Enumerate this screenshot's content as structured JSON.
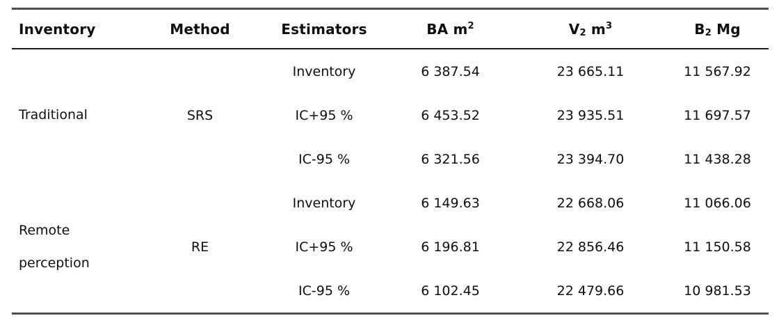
{
  "colors": {
    "background": "#ffffff",
    "text": "#0f0f0f",
    "rule_outer": "#4f4f4f",
    "rule_header": "#1c1c1c"
  },
  "table": {
    "headers": [
      {
        "name": "inventory",
        "parts": [
          {
            "text": "Inventory"
          }
        ]
      },
      {
        "name": "method",
        "parts": [
          {
            "text": "Method"
          }
        ]
      },
      {
        "name": "estimators",
        "parts": [
          {
            "text": "Estimators"
          }
        ]
      },
      {
        "name": "ba-m2",
        "parts": [
          {
            "text": "BA m"
          },
          {
            "text": "2",
            "style": "sup"
          }
        ]
      },
      {
        "name": "v2-m3",
        "parts": [
          {
            "text": "V"
          },
          {
            "text": "2",
            "style": "sub"
          },
          {
            "text": " m"
          },
          {
            "text": "3",
            "style": "sup"
          }
        ]
      },
      {
        "name": "b2-mg",
        "parts": [
          {
            "text": "B"
          },
          {
            "text": "2",
            "style": "sub"
          },
          {
            "text": " Mg"
          }
        ]
      }
    ],
    "groups": [
      {
        "inventory": "Traditional",
        "method": "SRS",
        "rows": [
          {
            "estimator": "Inventory",
            "ba_m2": "6 387.54",
            "v2_m3": "23 665.11",
            "b2_mg": "11 567.92"
          },
          {
            "estimator": "IC+95 %",
            "ba_m2": "6 453.52",
            "v2_m3": "23 935.51",
            "b2_mg": "11 697.57"
          },
          {
            "estimator": "IC-95 %",
            "ba_m2": "6 321.56",
            "v2_m3": "23 394.70",
            "b2_mg": "11 438.28"
          }
        ]
      },
      {
        "inventory": "Remote perception",
        "method": "RE",
        "rows": [
          {
            "estimator": "Inventory",
            "ba_m2": "6 149.63",
            "v2_m3": "22 668.06",
            "b2_mg": "11 066.06"
          },
          {
            "estimator": "IC+95 %",
            "ba_m2": "6 196.81",
            "v2_m3": "22 856.46",
            "b2_mg": "11 150.58"
          },
          {
            "estimator": "IC-95 %",
            "ba_m2": "6 102.45",
            "v2_m3": "22 479.66",
            "b2_mg": "10 981.53"
          }
        ]
      }
    ]
  }
}
